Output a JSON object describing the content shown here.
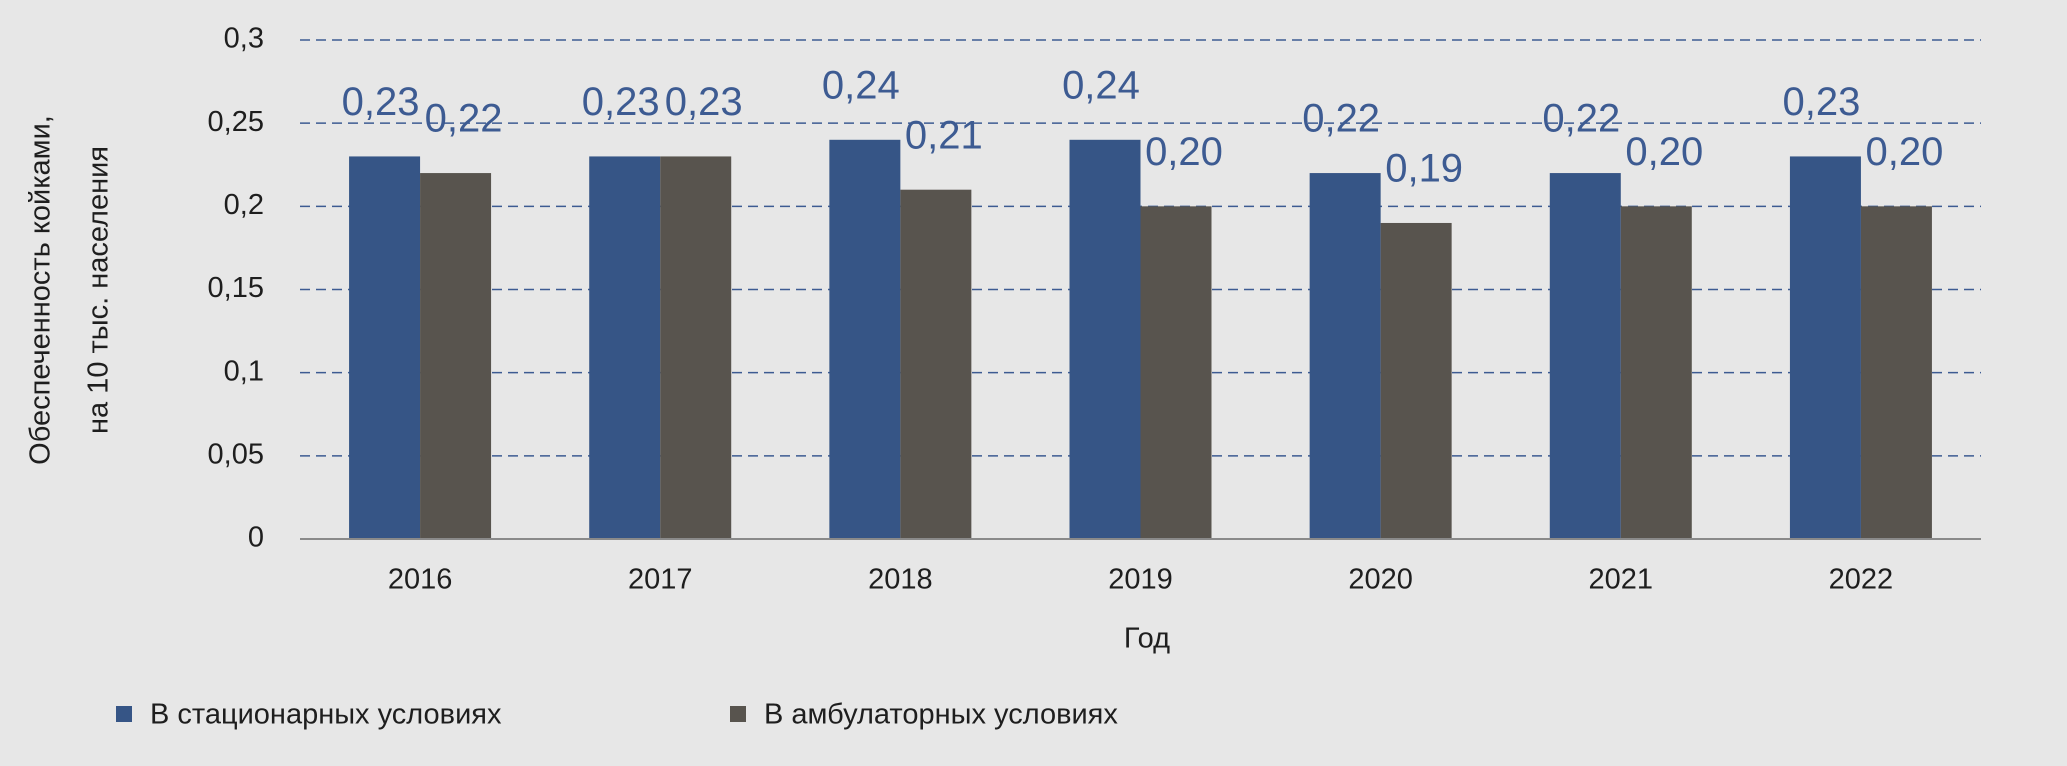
{
  "chart_data": {
    "type": "bar",
    "y_label": [
      "Обеспеченность койками,",
      "на 10 тыс. населения"
    ],
    "x_label": "Год",
    "categories": [
      "2016",
      "2017",
      "2018",
      "2019",
      "2020",
      "2021",
      "2022"
    ],
    "series": [
      {
        "name": "В стационарных условиях",
        "color": "#365586",
        "values": [
          0.23,
          0.23,
          0.24,
          0.24,
          0.22,
          0.22,
          0.23
        ],
        "value_labels": [
          "0,23",
          "0,23",
          "0,24",
          "0,24",
          "0,22",
          "0,22",
          "0,23"
        ]
      },
      {
        "name": "В амбулаторных условиях",
        "color": "#58544e",
        "values": [
          0.22,
          0.23,
          0.21,
          0.2,
          0.19,
          0.2,
          0.2
        ],
        "value_labels": [
          "0,22",
          "0,23",
          "0,21",
          "0,20",
          "0,19",
          "0,20",
          "0,20"
        ]
      }
    ],
    "ylim": [
      0,
      0.3
    ],
    "yticks": [
      0,
      {
        "value": 0.05,
        "label": "0,05"
      },
      {
        "value": 0.1,
        "label": "0,1"
      },
      {
        "value": 0.15,
        "label": "0,15"
      },
      {
        "value": 0.2,
        "label": "0,2"
      },
      {
        "value": 0.25,
        "label": "0,25"
      },
      {
        "value": 0.3,
        "label": "0,3"
      }
    ],
    "grid": true,
    "label_color": "#3d5b92",
    "grid_color": "#3d5b92"
  }
}
